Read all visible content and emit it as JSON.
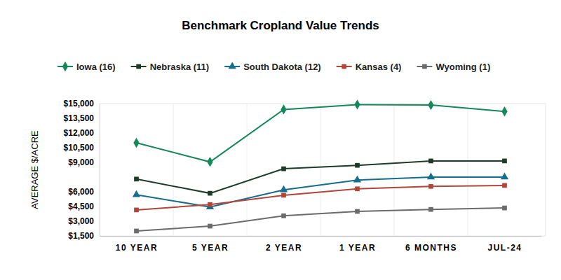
{
  "chart_data": {
    "type": "line",
    "title": "Benchmark Cropland Value Trends",
    "y_label": "AVERAGE $/ACRE",
    "categories": [
      "10 YEAR",
      "5 YEAR",
      "2 YEAR",
      "1 YEAR",
      "6 MONTHS",
      "JUL-24"
    ],
    "series": [
      {
        "name": "Iowa (16)",
        "color": "#15875a",
        "marker": "diamond",
        "values": [
          11000,
          9050,
          14400,
          14900,
          14850,
          14200
        ]
      },
      {
        "name": "Nebraska (11)",
        "color": "#1e3b2a",
        "marker": "square",
        "values": [
          7300,
          5850,
          8350,
          8700,
          9150,
          9150
        ]
      },
      {
        "name": "South Dakota (12)",
        "color": "#176d8c",
        "marker": "triangle",
        "values": [
          5700,
          4450,
          6200,
          7200,
          7500,
          7500
        ]
      },
      {
        "name": "Kansas (4)",
        "color": "#b0463a",
        "marker": "square",
        "values": [
          4150,
          4700,
          5650,
          6300,
          6550,
          6650
        ]
      },
      {
        "name": "Wyoming (1)",
        "color": "#6b6b6b",
        "marker": "square",
        "values": [
          2000,
          2500,
          3550,
          4000,
          4200,
          4350
        ]
      }
    ],
    "ylim": [
      1500,
      15000
    ],
    "yticks": [
      {
        "value": 1500,
        "label": "$1,500"
      },
      {
        "value": 3000,
        "label": "$3,000"
      },
      {
        "value": 4500,
        "label": "$4,500"
      },
      {
        "value": 6000,
        "label": "$6,000"
      },
      {
        "value": 9000,
        "label": "$9,000"
      },
      {
        "value": 10500,
        "label": "$10,500"
      },
      {
        "value": 12000,
        "label": "$12,000"
      },
      {
        "value": 13500,
        "label": "$13,500"
      },
      {
        "value": 15000,
        "label": "$15,000"
      }
    ],
    "legend": "top"
  }
}
